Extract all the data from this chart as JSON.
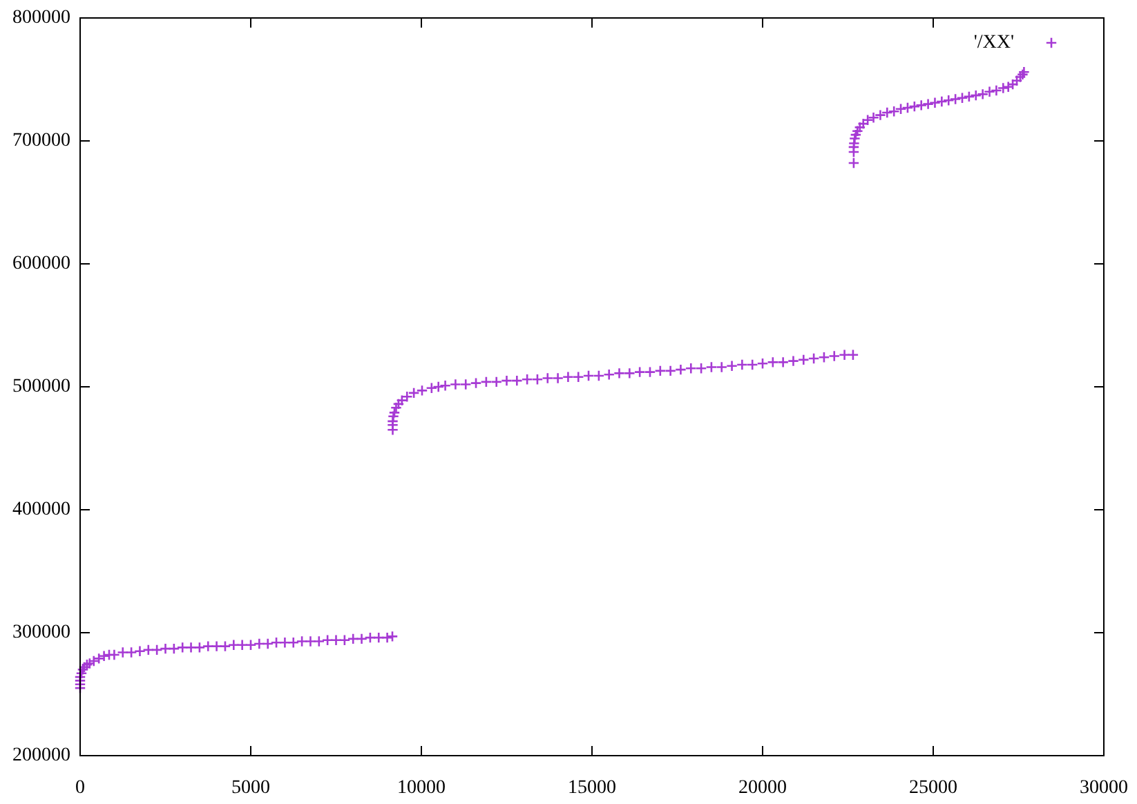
{
  "chart_data": {
    "type": "scatter",
    "xlim": [
      0,
      30000
    ],
    "ylim": [
      200000,
      800000
    ],
    "xticks": [
      0,
      5000,
      10000,
      15000,
      20000,
      25000,
      30000
    ],
    "yticks": [
      200000,
      300000,
      400000,
      500000,
      600000,
      700000,
      800000
    ],
    "legend": "top right",
    "marker": "cross",
    "series": [
      {
        "name": "'/XX'",
        "color": "#a63ad4",
        "x": [
          0,
          0,
          0,
          0,
          40,
          80,
          120,
          200,
          280,
          400,
          550,
          700,
          850,
          1000,
          1250,
          1500,
          1750,
          2000,
          2250,
          2500,
          2750,
          3000,
          3250,
          3500,
          3750,
          4000,
          4250,
          4500,
          4750,
          5000,
          5250,
          5500,
          5750,
          6000,
          6250,
          6500,
          6750,
          7000,
          7250,
          7500,
          7750,
          8000,
          8250,
          8500,
          8750,
          9000,
          9150,
          9160,
          9160,
          9160,
          9180,
          9210,
          9260,
          9330,
          9430,
          9580,
          9780,
          10020,
          10300,
          10500,
          10700,
          11000,
          11300,
          11600,
          11900,
          12200,
          12500,
          12800,
          13100,
          13400,
          13700,
          14000,
          14300,
          14600,
          14900,
          15200,
          15500,
          15800,
          16100,
          16400,
          16700,
          17000,
          17300,
          17600,
          17900,
          18200,
          18500,
          18800,
          19100,
          19400,
          19700,
          20000,
          20300,
          20600,
          20900,
          21200,
          21500,
          21800,
          22100,
          22400,
          22650,
          22670,
          22670,
          22670,
          22680,
          22700,
          22730,
          22780,
          22850,
          22950,
          23080,
          23250,
          23450,
          23650,
          23850,
          24050,
          24250,
          24450,
          24650,
          24850,
          25050,
          25250,
          25450,
          25650,
          25850,
          26050,
          26250,
          26450,
          26650,
          26850,
          27050,
          27200,
          27330,
          27450,
          27550,
          27620,
          27660
        ],
        "values": [
          255000,
          258000,
          261000,
          264000,
          267000,
          270000,
          272000,
          274000,
          275000,
          277000,
          279000,
          281000,
          282000,
          282000,
          284000,
          284000,
          285000,
          286000,
          286000,
          287000,
          287000,
          288000,
          288000,
          288000,
          289000,
          289000,
          289000,
          290000,
          290000,
          290000,
          291000,
          291000,
          292000,
          292000,
          292000,
          293000,
          293000,
          293000,
          294000,
          294000,
          294000,
          295000,
          295000,
          296000,
          296000,
          296000,
          297000,
          465000,
          469000,
          472000,
          476000,
          479000,
          483000,
          486000,
          489000,
          492000,
          495000,
          497000,
          499000,
          500000,
          501000,
          502000,
          502000,
          503000,
          504000,
          504000,
          505000,
          505000,
          506000,
          506000,
          507000,
          507000,
          508000,
          508000,
          509000,
          509000,
          510000,
          511000,
          511000,
          512000,
          512000,
          513000,
          513000,
          514000,
          515000,
          515000,
          516000,
          516000,
          517000,
          518000,
          518000,
          519000,
          520000,
          520000,
          521000,
          522000,
          523000,
          524000,
          525000,
          526000,
          526000,
          682000,
          691000,
          695000,
          698000,
          702000,
          705000,
          708000,
          711000,
          714000,
          717000,
          719000,
          721000,
          723000,
          724000,
          726000,
          727000,
          728000,
          729000,
          730000,
          731000,
          732000,
          733000,
          734000,
          735000,
          736000,
          737000,
          738000,
          740000,
          741000,
          743000,
          744000,
          746000,
          749000,
          752000,
          754000,
          756000
        ]
      }
    ]
  }
}
